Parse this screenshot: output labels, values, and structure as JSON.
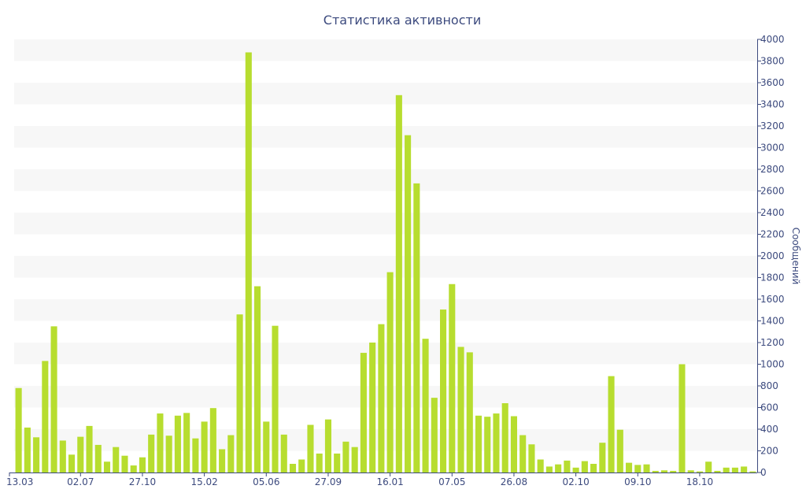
{
  "chart_data": {
    "type": "bar",
    "title": "Статистика активности",
    "xlabel": "",
    "ylabel": "Сообщений",
    "ylim": [
      0,
      4000
    ],
    "y_ticks": [
      0,
      200,
      400,
      600,
      800,
      1000,
      1200,
      1400,
      1600,
      1800,
      2000,
      2200,
      2400,
      2600,
      2800,
      3000,
      3200,
      3400,
      3600,
      3800,
      4000
    ],
    "y_axis_side": "right",
    "grid": "alternating horizontal bands",
    "x_tick_labels": [
      {
        "index": 0,
        "label": "13.03"
      },
      {
        "index": 7,
        "label": "02.07"
      },
      {
        "index": 14,
        "label": "27.10"
      },
      {
        "index": 21,
        "label": "15.02"
      },
      {
        "index": 28,
        "label": "05.06"
      },
      {
        "index": 35,
        "label": "27.09"
      },
      {
        "index": 42,
        "label": "16.01"
      },
      {
        "index": 49,
        "label": "07.05"
      },
      {
        "index": 56,
        "label": "26.08"
      },
      {
        "index": 63,
        "label": "02.10"
      },
      {
        "index": 70,
        "label": "09.10"
      },
      {
        "index": 77,
        "label": "18.10"
      }
    ],
    "values": [
      780,
      415,
      325,
      1030,
      1350,
      295,
      165,
      330,
      430,
      255,
      100,
      235,
      155,
      65,
      140,
      350,
      545,
      340,
      525,
      550,
      315,
      470,
      595,
      215,
      345,
      1460,
      3880,
      1720,
      470,
      1355,
      350,
      80,
      120,
      440,
      175,
      490,
      175,
      285,
      235,
      1105,
      1200,
      1370,
      1850,
      3485,
      3115,
      2670,
      1235,
      690,
      1505,
      1740,
      1160,
      1110,
      525,
      515,
      545,
      640,
      520,
      345,
      260,
      120,
      55,
      75,
      110,
      45,
      105,
      80,
      275,
      890,
      395,
      90,
      70,
      75,
      15,
      20,
      15,
      1000,
      20,
      10,
      100,
      15,
      45,
      45,
      55,
      10
    ],
    "colors": {
      "bar": "#b7dd2f",
      "text": "#3c4a7e",
      "band": "#f7f7f7",
      "axis": "#3c4a7e"
    }
  }
}
